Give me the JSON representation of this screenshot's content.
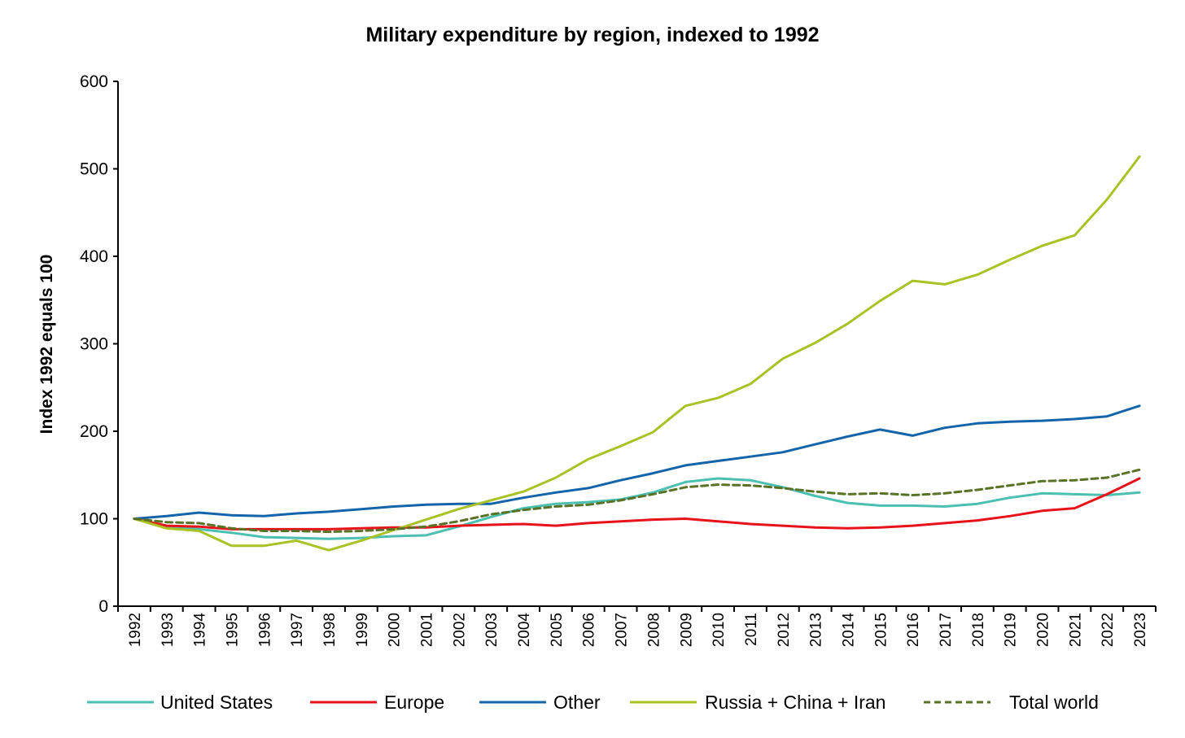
{
  "chart_data": {
    "type": "line",
    "title": "Military expenditure by region, indexed to 1992",
    "xlabel": "",
    "ylabel": "Index 1992 equals 100",
    "ylim": [
      0,
      600
    ],
    "yticks": [
      0,
      100,
      200,
      300,
      400,
      500,
      600
    ],
    "grid": false,
    "legend_position": "bottom",
    "x": [
      "1992",
      "1993",
      "1994",
      "1995",
      "1996",
      "1997",
      "1998",
      "1999",
      "2000",
      "2001",
      "2002",
      "2003",
      "2004",
      "2005",
      "2006",
      "2007",
      "2008",
      "2009",
      "2010",
      "2011",
      "2012",
      "2013",
      "2014",
      "2015",
      "2016",
      "2017",
      "2018",
      "2019",
      "2020",
      "2021",
      "2022",
      "2023"
    ],
    "series": [
      {
        "name": "United States",
        "color": "#4bbfb0",
        "dashed": false,
        "values": [
          100,
          91,
          88,
          84,
          79,
          78,
          77,
          78,
          80,
          81,
          91,
          102,
          112,
          117,
          119,
          122,
          130,
          142,
          146,
          144,
          136,
          126,
          118,
          115,
          115,
          114,
          117,
          124,
          129,
          128,
          127,
          130
        ]
      },
      {
        "name": "Europe",
        "color": "#e8121b",
        "dashed": false,
        "values": [
          100,
          92,
          91,
          88,
          88,
          88,
          88,
          89,
          90,
          90,
          92,
          93,
          94,
          92,
          95,
          97,
          99,
          100,
          97,
          94,
          92,
          90,
          89,
          90,
          92,
          95,
          98,
          103,
          109,
          112,
          128,
          146
        ]
      },
      {
        "name": "Other",
        "color": "#1464aa",
        "dashed": false,
        "values": [
          100,
          103,
          107,
          104,
          103,
          106,
          108,
          111,
          114,
          116,
          117,
          117,
          124,
          130,
          135,
          144,
          152,
          161,
          166,
          171,
          176,
          185,
          194,
          202,
          195,
          204,
          209,
          211,
          212,
          214,
          217,
          229
        ]
      },
      {
        "name": "Russia + China + Iran",
        "color": "#a9c225",
        "dashed": false,
        "values": [
          100,
          89,
          86,
          69,
          69,
          75,
          64,
          75,
          87,
          99,
          111,
          121,
          131,
          147,
          168,
          183,
          199,
          229,
          238,
          254,
          283,
          301,
          323,
          349,
          372,
          368,
          379,
          396,
          412,
          424,
          465,
          514
        ]
      },
      {
        "name": "Total world",
        "color": "#5a7226",
        "dashed": true,
        "values": [
          100,
          96,
          95,
          89,
          86,
          86,
          85,
          86,
          88,
          91,
          97,
          105,
          110,
          114,
          116,
          121,
          128,
          136,
          139,
          138,
          135,
          131,
          128,
          129,
          127,
          129,
          133,
          138,
          143,
          144,
          147,
          156
        ]
      }
    ]
  }
}
